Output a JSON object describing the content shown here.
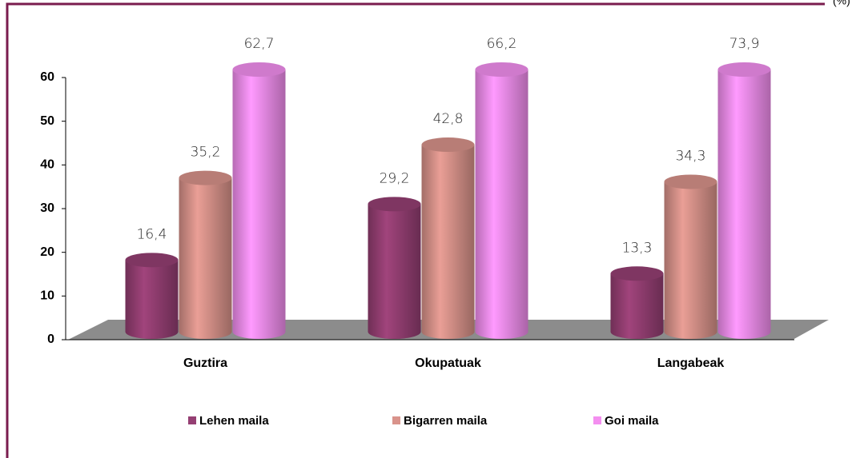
{
  "chart_data": {
    "type": "bar",
    "unit": "(%)",
    "categories": [
      "Guztira",
      "Okupatuak",
      "Langabeak"
    ],
    "series": [
      {
        "name": "Lehen maila",
        "color": "#953f73",
        "values": [
          16.4,
          29.2,
          13.3
        ],
        "value_labels": [
          "16,4",
          "29,2",
          "13,3"
        ]
      },
      {
        "name": "Bigarren maila",
        "color": "#d9938b",
        "values": [
          35.2,
          42.8,
          34.3
        ],
        "value_labels": [
          "35,2",
          "42,8",
          "34,3"
        ]
      },
      {
        "name": "Goi maila",
        "color": "#f48ff0",
        "values": [
          62.7,
          66.2,
          73.9
        ],
        "value_labels": [
          "62,7",
          "66,2",
          "73,9"
        ]
      }
    ],
    "ylim": [
      0,
      60
    ],
    "yticks": [
      0,
      10,
      20,
      30,
      40,
      50,
      60
    ],
    "legend": "bottom"
  }
}
